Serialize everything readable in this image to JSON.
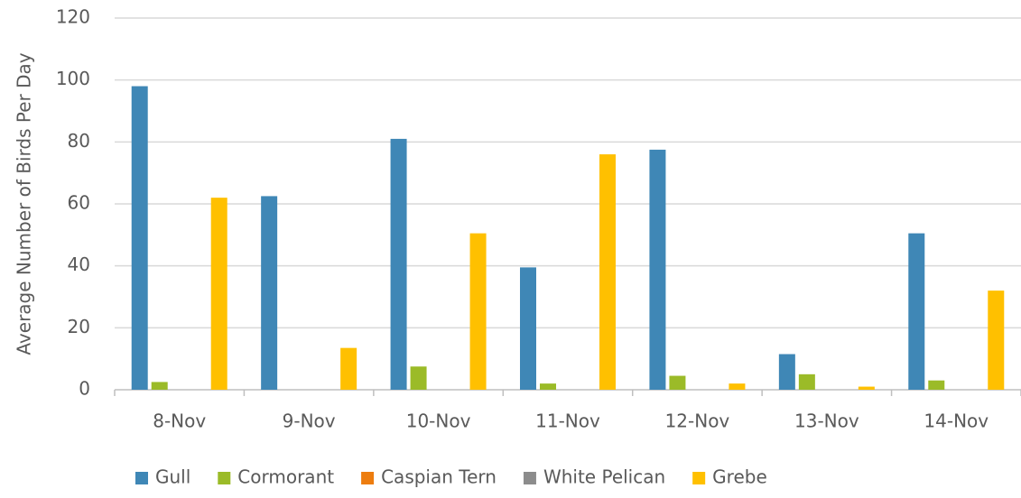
{
  "chart_data": {
    "type": "bar",
    "y_label": "Average Number of Birds Per Day",
    "categories": [
      "8-Nov",
      "9-Nov",
      "10-Nov",
      "11-Nov",
      "12-Nov",
      "13-Nov",
      "14-Nov"
    ],
    "series": [
      {
        "name": "Gull",
        "color": "#3f87b6",
        "values": [
          98,
          62.5,
          81,
          39.5,
          77.5,
          11.5,
          50.5
        ]
      },
      {
        "name": "Cormorant",
        "color": "#9bbb28",
        "values": [
          2.5,
          0,
          7.5,
          2,
          4.5,
          5,
          3
        ]
      },
      {
        "name": "Caspian Tern",
        "color": "#ed7d0f",
        "values": [
          0,
          0,
          0,
          0,
          0,
          0,
          0
        ]
      },
      {
        "name": "White Pelican",
        "color": "#8c8c8c",
        "values": [
          0,
          0,
          0,
          0,
          0,
          0,
          0
        ]
      },
      {
        "name": "Grebe",
        "color": "#ffc000",
        "values": [
          62,
          13.5,
          50.5,
          76,
          2,
          1,
          32
        ]
      }
    ],
    "ylim": [
      0,
      120
    ],
    "yticks": [
      0,
      20,
      40,
      60,
      80,
      100,
      120
    ],
    "grid": true,
    "legend": "bottom"
  }
}
